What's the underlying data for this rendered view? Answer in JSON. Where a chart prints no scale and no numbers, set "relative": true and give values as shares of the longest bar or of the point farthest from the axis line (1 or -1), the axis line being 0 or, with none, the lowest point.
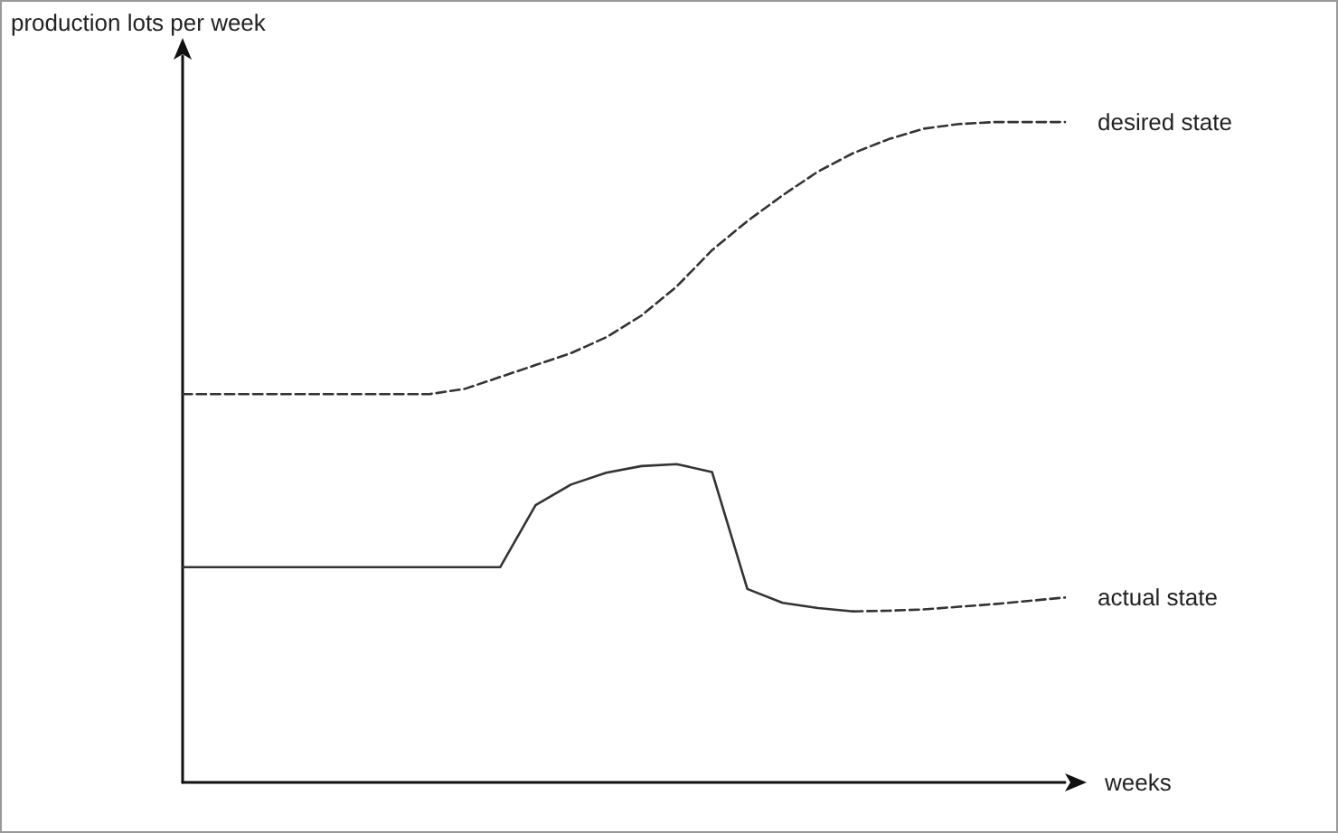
{
  "chart_data": {
    "type": "line",
    "relative": true,
    "xlabel": "weeks",
    "ylabel": "production lots per week",
    "categories": [
      null,
      null,
      null,
      null,
      null,
      null,
      null,
      null,
      null,
      null,
      null,
      null,
      null,
      null,
      null,
      null,
      null,
      null,
      null,
      null,
      null,
      null,
      null,
      null,
      null,
      null
    ],
    "series": [
      {
        "name": "desired state",
        "color": "#333333",
        "line_style": "dashed",
        "values": [
          0.588,
          0.588,
          0.588,
          0.588,
          0.588,
          0.588,
          0.588,
          0.588,
          0.596,
          0.614,
          0.632,
          0.65,
          0.674,
          0.707,
          0.751,
          0.806,
          0.85,
          0.889,
          0.925,
          0.953,
          0.974,
          0.99,
          0.997,
          1,
          1,
          1
        ]
      },
      {
        "color": "#333333",
        "line_style": "solid",
        "values": [
          0.326,
          0.326,
          0.326,
          0.326,
          0.326,
          0.326,
          0.326,
          0.326,
          0.326,
          0.326,
          0.42,
          0.451,
          0.469,
          0.479,
          0.482,
          0.47,
          0.293,
          0.272,
          0.264,
          0.259,
          null,
          null,
          null,
          null,
          null,
          null
        ]
      },
      {
        "name": "actual state",
        "color": "#333333",
        "line_style": "dashed",
        "values": [
          null,
          null,
          null,
          null,
          null,
          null,
          null,
          null,
          null,
          null,
          null,
          null,
          null,
          null,
          null,
          null,
          null,
          null,
          null,
          0.259,
          0.26,
          0.262,
          0.266,
          0.27,
          0.275,
          0.28
        ]
      }
    ],
    "grid": false,
    "legend": false,
    "marker": "none"
  }
}
